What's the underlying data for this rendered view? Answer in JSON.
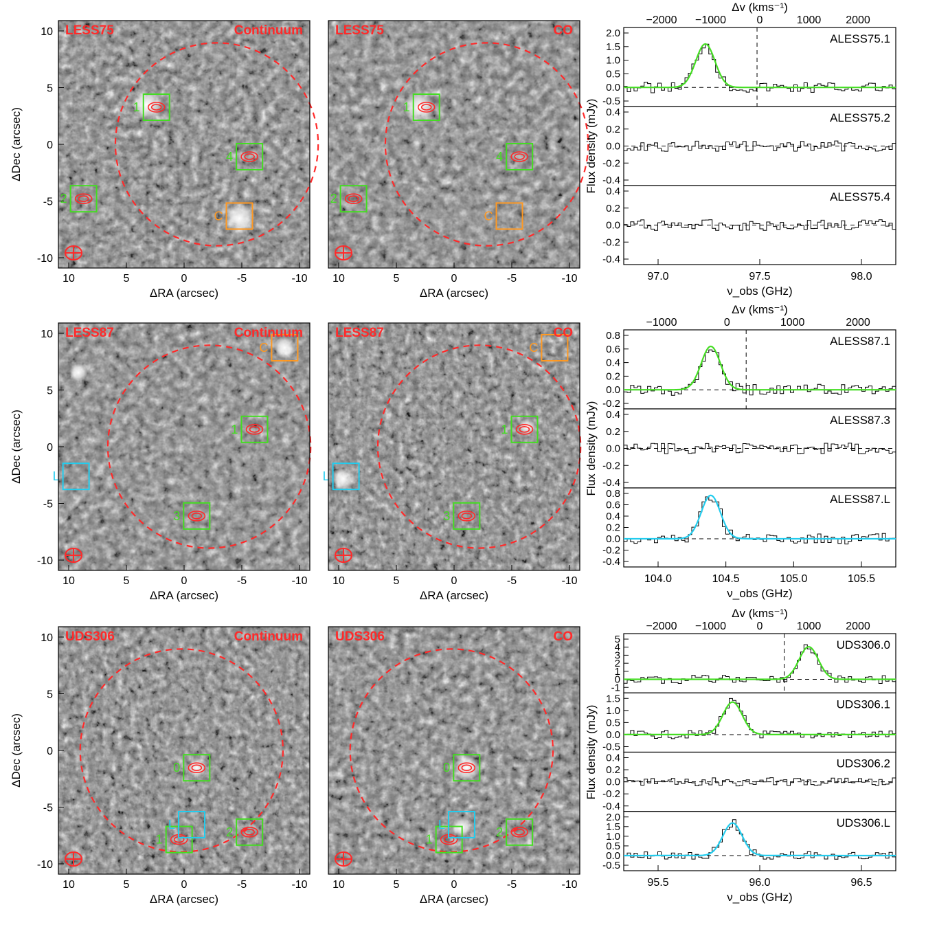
{
  "rows": [
    {
      "field": "LESS75",
      "maps": [
        {
          "title": "LESS75",
          "subtitle": "Continuum",
          "x_ticks": [
            "10",
            "5",
            "0",
            "-5",
            "-10"
          ],
          "y_ticks": [
            "10",
            "5",
            "0",
            "-5",
            "-10"
          ],
          "xlabel": "ΔRA (arcsec)",
          "ylabel": "ΔDec (arcsec)"
        },
        {
          "title": "LESS75",
          "subtitle": "CO",
          "x_ticks": [
            "10",
            "5",
            "0",
            "-5",
            "-10"
          ],
          "y_ticks": [],
          "xlabel": "ΔRA (arcsec)",
          "ylabel": ""
        }
      ],
      "markers": [
        {
          "label": "1",
          "color": "#44dd22"
        },
        {
          "label": "2",
          "color": "#44dd22"
        },
        {
          "label": "4",
          "color": "#44dd22"
        },
        {
          "label": "C",
          "color": "#ff9922"
        }
      ],
      "spectra": {
        "top_axis_label": "Δv (kms⁻¹)",
        "top_ticks": [
          "−2000",
          "−1000",
          "0",
          "1000",
          "2000"
        ],
        "bottom_ticks": [
          "97.0",
          "97.5",
          "98.0"
        ],
        "xlabel": "ν_obs (GHz)",
        "ylabel": "Flux density (mJy)",
        "panels": [
          {
            "name": "ALESS75.1",
            "y_ticks": [
              "2.0",
              "1.5",
              "1.0",
              "0.5",
              "0.0",
              "-0.5"
            ],
            "fit_color": "#44dd22"
          },
          {
            "name": "ALESS75.2",
            "y_ticks": [
              "0.4",
              "0.2",
              "0.0",
              "-0.2",
              "-0.4"
            ],
            "fit_color": ""
          },
          {
            "name": "ALESS75.4",
            "y_ticks": [
              "0.4",
              "0.2",
              "0.0",
              "-0.2",
              "-0.4"
            ],
            "fit_color": ""
          }
        ]
      }
    },
    {
      "field": "LESS87",
      "maps": [
        {
          "title": "LESS87",
          "subtitle": "Continuum",
          "x_ticks": [
            "10",
            "5",
            "0",
            "-5",
            "-10"
          ],
          "y_ticks": [
            "10",
            "5",
            "0",
            "-5",
            "-10"
          ],
          "xlabel": "ΔRA (arcsec)",
          "ylabel": "ΔDec (arcsec)"
        },
        {
          "title": "LESS87",
          "subtitle": "CO",
          "x_ticks": [
            "10",
            "5",
            "0",
            "-5",
            "-10"
          ],
          "y_ticks": [],
          "xlabel": "ΔRA (arcsec)",
          "ylabel": ""
        }
      ],
      "markers": [
        {
          "label": "1",
          "color": "#44dd22"
        },
        {
          "label": "3",
          "color": "#44dd22"
        },
        {
          "label": "C",
          "color": "#ff9922"
        },
        {
          "label": "L",
          "color": "#22ccee"
        }
      ],
      "spectra": {
        "top_axis_label": "Δv (kms⁻¹)",
        "top_ticks": [
          "−1000",
          "0",
          "1000",
          "2000"
        ],
        "bottom_ticks": [
          "104.0",
          "104.5",
          "105.0",
          "105.5"
        ],
        "xlabel": "ν_obs (GHz)",
        "ylabel": "Flux density (mJy)",
        "panels": [
          {
            "name": "ALESS87.1",
            "y_ticks": [
              "0.8",
              "0.6",
              "0.4",
              "0.2",
              "0.0",
              "-0.2"
            ],
            "fit_color": "#44dd22"
          },
          {
            "name": "ALESS87.3",
            "y_ticks": [
              "0.4",
              "0.2",
              "0.0",
              "-0.2",
              "-0.4"
            ],
            "fit_color": ""
          },
          {
            "name": "ALESS87.L",
            "y_ticks": [
              "0.8",
              "0.6",
              "0.4",
              "0.2",
              "0.0",
              "-0.2",
              "-0.4"
            ],
            "fit_color": "#22ccee"
          }
        ]
      }
    },
    {
      "field": "UDS306",
      "maps": [
        {
          "title": "UDS306",
          "subtitle": "Continuum",
          "x_ticks": [
            "10",
            "5",
            "0",
            "-5",
            "-10"
          ],
          "y_ticks": [
            "10",
            "5",
            "0",
            "-5",
            "-10"
          ],
          "xlabel": "ΔRA (arcsec)",
          "ylabel": "ΔDec (arcsec)"
        },
        {
          "title": "UDS306",
          "subtitle": "CO",
          "x_ticks": [
            "10",
            "5",
            "0",
            "-5",
            "-10"
          ],
          "y_ticks": [],
          "xlabel": "ΔRA (arcsec)",
          "ylabel": ""
        }
      ],
      "markers": [
        {
          "label": "0",
          "color": "#44dd22"
        },
        {
          "label": "1",
          "color": "#44dd22"
        },
        {
          "label": "2",
          "color": "#44dd22"
        },
        {
          "label": "L",
          "color": "#22ccee"
        }
      ],
      "spectra": {
        "top_axis_label": "Δv (kms⁻¹)",
        "top_ticks": [
          "−2000",
          "−1000",
          "0",
          "1000",
          "2000"
        ],
        "bottom_ticks": [
          "95.5",
          "96.0",
          "96.5"
        ],
        "xlabel": "ν_obs (GHz)",
        "ylabel": "Flux density (mJy)",
        "panels": [
          {
            "name": "UDS306.0",
            "y_ticks": [
              "5",
              "4",
              "3",
              "2",
              "1",
              "0",
              "-1"
            ],
            "fit_color": "#44dd22"
          },
          {
            "name": "UDS306.1",
            "y_ticks": [
              "1.5",
              "1.0",
              "0.5",
              "0.0",
              "-0.5"
            ],
            "fit_color": "#44dd22"
          },
          {
            "name": "UDS306.2",
            "y_ticks": [
              "0.4",
              "0.2",
              "0.0",
              "-0.2",
              "-0.4"
            ],
            "fit_color": ""
          },
          {
            "name": "UDS306.L",
            "y_ticks": [
              "2.0",
              "1.5",
              "1.0",
              "0.5",
              "0.0",
              "-0.5"
            ],
            "fit_color": "#22ccee"
          }
        ]
      }
    }
  ],
  "colors": {
    "contour": "#ff2a2a",
    "green_box": "#44dd22",
    "orange_box": "#ff9922",
    "cyan_box": "#22ccee"
  }
}
